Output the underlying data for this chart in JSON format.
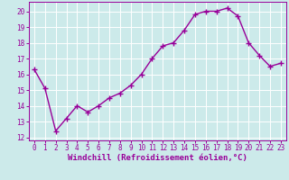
{
  "x": [
    0,
    1,
    2,
    3,
    4,
    5,
    6,
    7,
    8,
    9,
    10,
    11,
    12,
    13,
    14,
    15,
    16,
    17,
    18,
    19,
    20,
    21,
    22,
    23
  ],
  "y": [
    16.3,
    15.1,
    12.4,
    13.2,
    14.0,
    13.6,
    14.0,
    14.5,
    14.8,
    15.3,
    16.0,
    17.0,
    17.8,
    18.0,
    18.8,
    19.8,
    20.0,
    20.0,
    20.2,
    19.7,
    18.0,
    17.2,
    16.5,
    16.7
  ],
  "line_color": "#990099",
  "marker": "+",
  "marker_size": 4,
  "marker_linewidth": 1.0,
  "line_width": 1.0,
  "background_color": "#cceaea",
  "grid_color": "#ffffff",
  "xlabel": "Windchill (Refroidissement éolien,°C)",
  "xlabel_color": "#990099",
  "tick_color": "#990099",
  "spine_color": "#990099",
  "xlabel_fontsize": 6.5,
  "tick_fontsize": 5.5,
  "ylim": [
    11.8,
    20.6
  ],
  "xlim": [
    -0.5,
    23.5
  ],
  "yticks": [
    12,
    13,
    14,
    15,
    16,
    17,
    18,
    19,
    20
  ],
  "xticks": [
    0,
    1,
    2,
    3,
    4,
    5,
    6,
    7,
    8,
    9,
    10,
    11,
    12,
    13,
    14,
    15,
    16,
    17,
    18,
    19,
    20,
    21,
    22,
    23
  ]
}
